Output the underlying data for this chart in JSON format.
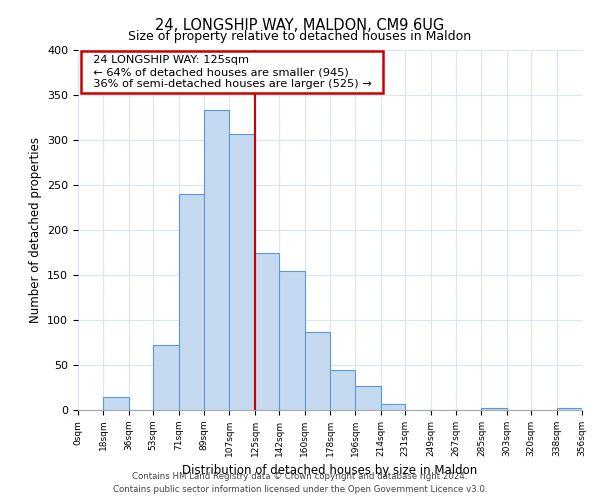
{
  "title": "24, LONGSHIP WAY, MALDON, CM9 6UG",
  "subtitle": "Size of property relative to detached houses in Maldon",
  "xlabel": "Distribution of detached houses by size in Maldon",
  "ylabel": "Number of detached properties",
  "bar_edges": [
    0,
    18,
    36,
    53,
    71,
    89,
    107,
    125,
    142,
    160,
    178,
    196,
    214,
    231,
    249,
    267,
    285,
    303,
    320,
    338,
    356
  ],
  "bar_heights": [
    0,
    15,
    0,
    72,
    240,
    333,
    307,
    175,
    155,
    87,
    44,
    27,
    7,
    0,
    0,
    0,
    2,
    0,
    0,
    2
  ],
  "bar_color": "#c5d9f1",
  "bar_edge_color": "#5b9bd5",
  "property_line_x": 125,
  "property_line_color": "#cc0000",
  "annotation_title": "24 LONGSHIP WAY: 125sqm",
  "annotation_line1": "← 64% of detached houses are smaller (945)",
  "annotation_line2": "36% of semi-detached houses are larger (525) →",
  "annotation_box_color": "#ffffff",
  "annotation_box_edge_color": "#cc0000",
  "tick_labels": [
    "0sqm",
    "18sqm",
    "36sqm",
    "53sqm",
    "71sqm",
    "89sqm",
    "107sqm",
    "125sqm",
    "142sqm",
    "160sqm",
    "178sqm",
    "196sqm",
    "214sqm",
    "231sqm",
    "249sqm",
    "267sqm",
    "285sqm",
    "303sqm",
    "320sqm",
    "338sqm",
    "356sqm"
  ],
  "ylim": [
    0,
    400
  ],
  "yticks": [
    0,
    50,
    100,
    150,
    200,
    250,
    300,
    350,
    400
  ],
  "footer_line1": "Contains HM Land Registry data © Crown copyright and database right 2024.",
  "footer_line2": "Contains public sector information licensed under the Open Government Licence v3.0.",
  "background_color": "#ffffff",
  "grid_color": "#d9e5f0"
}
